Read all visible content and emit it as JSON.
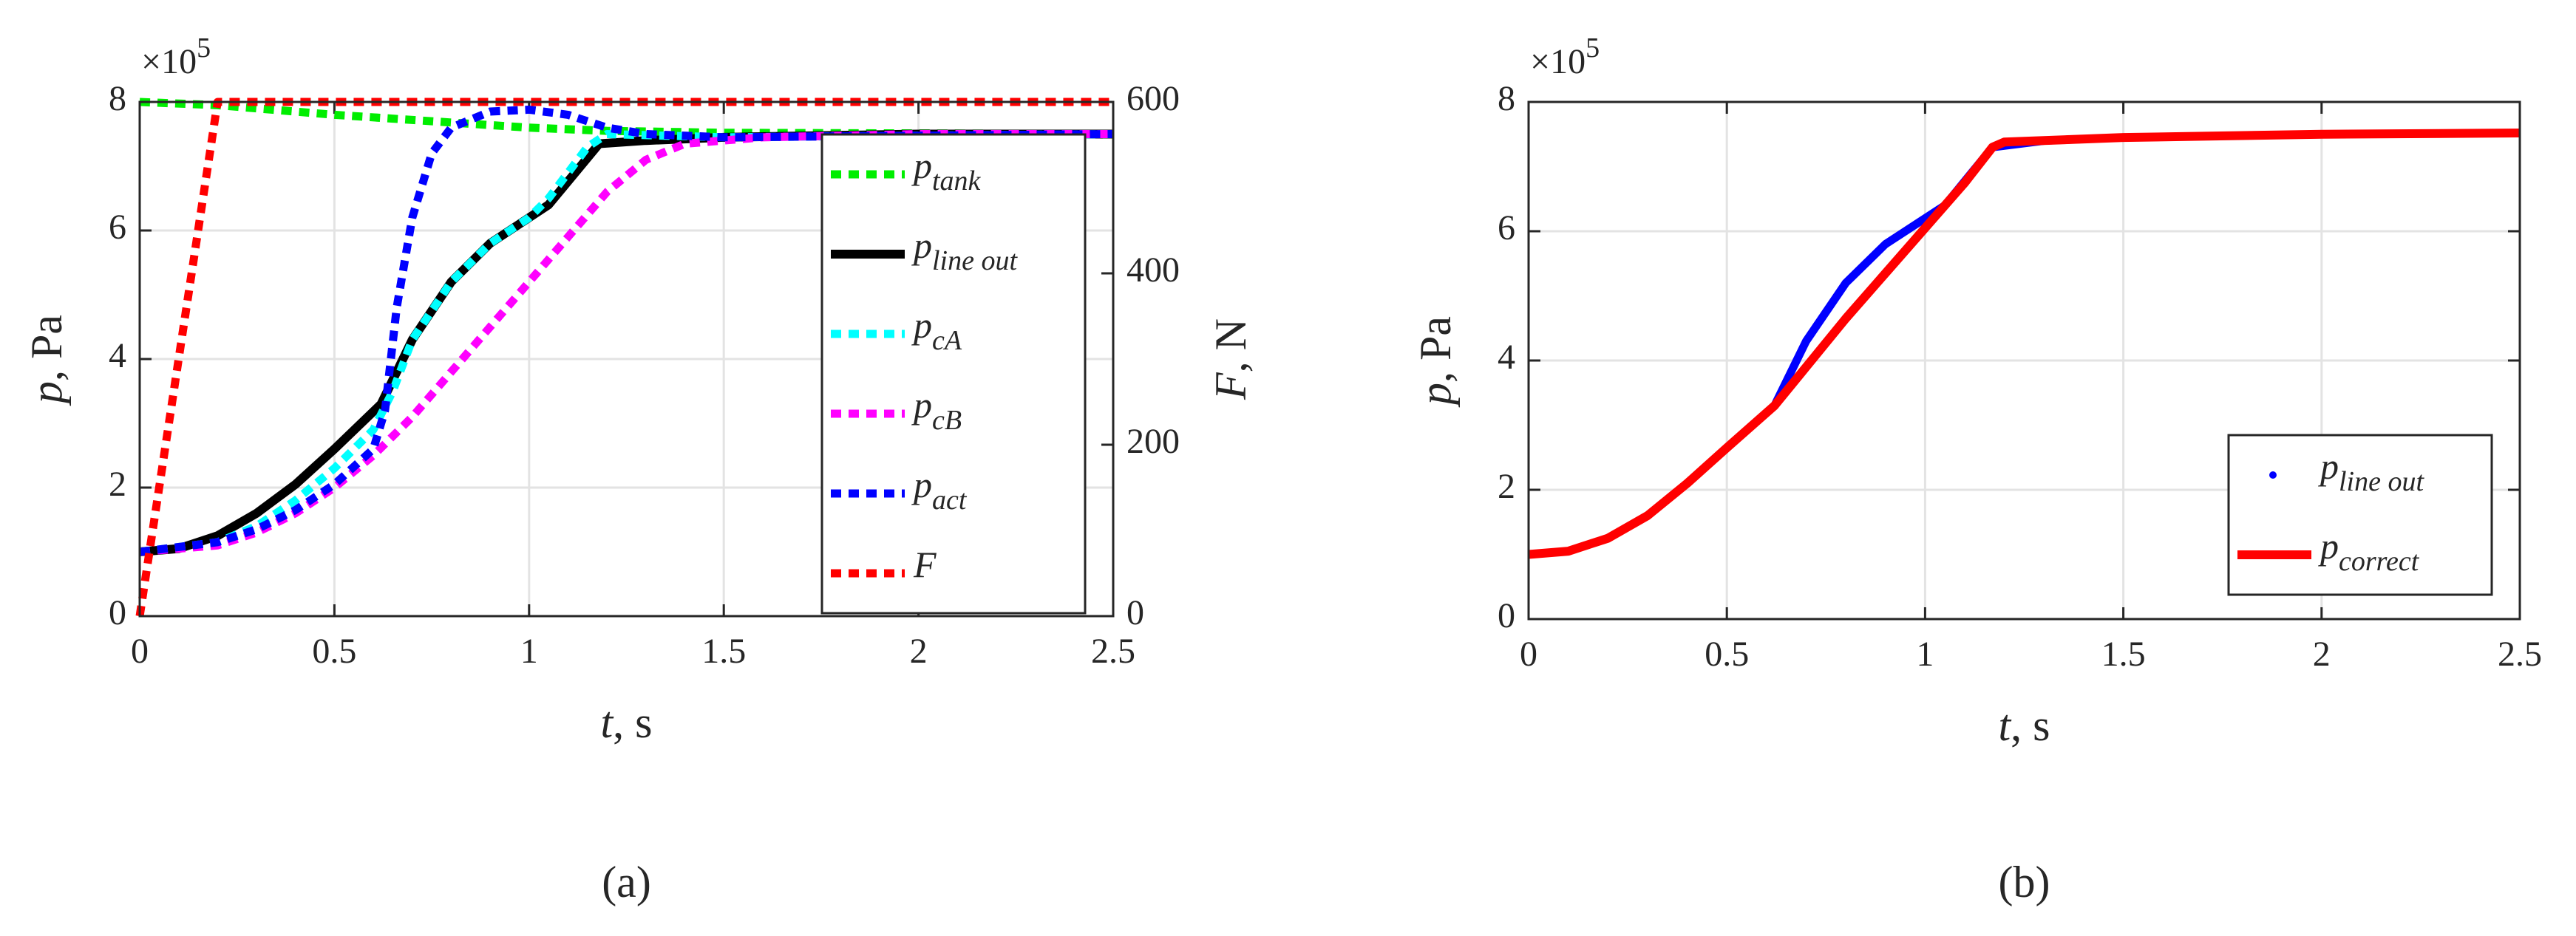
{
  "chart_data": [
    {
      "type": "line",
      "panel_label": "(a)",
      "multiplier": {
        "base": "×10",
        "exponent": "5"
      },
      "xlabel": {
        "symbol": "t",
        "rest": ", s"
      },
      "ylabel": {
        "symbol": "p",
        "rest": ", Pa"
      },
      "y2label": {
        "symbol": "F",
        "rest": ", N"
      },
      "xlim": [
        0,
        2.5
      ],
      "xticks": [
        0,
        0.5,
        1,
        1.5,
        2,
        2.5
      ],
      "ylim": [
        0,
        8
      ],
      "yticks": [
        0,
        2,
        4,
        6,
        8
      ],
      "y2lim": [
        0,
        600
      ],
      "y2ticks": [
        0,
        200,
        400,
        600
      ],
      "grid": true,
      "legend": "east",
      "series": [
        {
          "name": "p",
          "subscript": "tank",
          "color": "#00ee00",
          "style": "dotted",
          "x": [
            0,
            0.2,
            0.5,
            1.0,
            1.2,
            1.5,
            2.5
          ],
          "values": [
            8.0,
            7.95,
            7.8,
            7.6,
            7.55,
            7.52,
            7.5
          ]
        },
        {
          "name": "p",
          "subscript": "line out",
          "color": "#000000",
          "style": "solid",
          "x": [
            0,
            0.1,
            0.2,
            0.3,
            0.4,
            0.5,
            0.62,
            0.7,
            0.8,
            0.9,
            1.0,
            1.05,
            1.18,
            1.3,
            1.5,
            2.0,
            2.5
          ],
          "values": [
            1.0,
            1.05,
            1.25,
            1.6,
            2.05,
            2.6,
            3.3,
            4.3,
            5.2,
            5.8,
            6.2,
            6.4,
            7.35,
            7.4,
            7.45,
            7.5,
            7.5
          ]
        },
        {
          "name": "p",
          "subscript": "cA",
          "color": "#00ffff",
          "style": "dotted",
          "x": [
            0,
            0.2,
            0.3,
            0.4,
            0.5,
            0.6,
            0.65,
            0.7,
            0.8,
            0.9,
            1.0,
            1.05,
            1.15,
            1.2,
            1.5,
            2.5
          ],
          "values": [
            1.0,
            1.15,
            1.4,
            1.8,
            2.3,
            2.9,
            3.5,
            4.3,
            5.2,
            5.8,
            6.2,
            6.5,
            7.3,
            7.5,
            7.45,
            7.5
          ]
        },
        {
          "name": "p",
          "subscript": "cB",
          "color": "#ff00ff",
          "style": "dotted",
          "x": [
            0,
            0.2,
            0.3,
            0.4,
            0.5,
            0.6,
            0.7,
            0.8,
            0.9,
            1.0,
            1.1,
            1.2,
            1.3,
            1.4,
            1.6,
            2.0,
            2.5
          ],
          "values": [
            1.0,
            1.1,
            1.3,
            1.6,
            2.0,
            2.5,
            3.1,
            3.8,
            4.5,
            5.2,
            5.9,
            6.6,
            7.1,
            7.35,
            7.45,
            7.5,
            7.5
          ]
        },
        {
          "name": "p",
          "subscript": "act",
          "color": "#0000ff",
          "style": "dotted",
          "x": [
            0,
            0.2,
            0.3,
            0.4,
            0.5,
            0.6,
            0.63,
            0.66,
            0.7,
            0.75,
            0.8,
            0.9,
            1.0,
            1.1,
            1.2,
            1.3,
            1.5,
            2.5
          ],
          "values": [
            1.0,
            1.15,
            1.35,
            1.65,
            2.05,
            2.6,
            3.2,
            4.8,
            6.2,
            7.2,
            7.6,
            7.85,
            7.88,
            7.8,
            7.6,
            7.5,
            7.45,
            7.5
          ]
        },
        {
          "name": "F",
          "color": "#ff0000",
          "style": "dotted",
          "axis": "y2",
          "x": [
            0,
            0.2,
            2.5
          ],
          "values": [
            0,
            600,
            600
          ]
        }
      ]
    },
    {
      "type": "line",
      "panel_label": "(b)",
      "multiplier": {
        "base": "×10",
        "exponent": "5"
      },
      "xlabel": {
        "symbol": "t",
        "rest": ", s"
      },
      "ylabel": {
        "symbol": "p",
        "rest": ", Pa"
      },
      "xlim": [
        0,
        2.5
      ],
      "xticks": [
        0,
        0.5,
        1,
        1.5,
        2,
        2.5
      ],
      "ylim": [
        0,
        8
      ],
      "yticks": [
        0,
        2,
        4,
        6,
        8
      ],
      "grid": true,
      "legend": "southeast",
      "series": [
        {
          "name": "p",
          "subscript": "line out",
          "color": "#0000ff",
          "style": "dot",
          "x": [
            0,
            0.1,
            0.2,
            0.3,
            0.4,
            0.5,
            0.62,
            0.7,
            0.8,
            0.9,
            1.0,
            1.05,
            1.17,
            1.3,
            1.5,
            2.0,
            2.5
          ],
          "values": [
            1.0,
            1.05,
            1.25,
            1.6,
            2.1,
            2.65,
            3.3,
            4.3,
            5.2,
            5.8,
            6.2,
            6.4,
            7.3,
            7.4,
            7.45,
            7.5,
            7.52
          ]
        },
        {
          "name": "p",
          "subscript": "correct",
          "color": "#ff0000",
          "style": "solid",
          "x": [
            0,
            0.1,
            0.2,
            0.3,
            0.4,
            0.5,
            0.62,
            0.7,
            0.8,
            0.9,
            1.0,
            1.1,
            1.17,
            1.2,
            1.5,
            2.0,
            2.5
          ],
          "values": [
            1.0,
            1.05,
            1.25,
            1.6,
            2.1,
            2.65,
            3.3,
            3.9,
            4.65,
            5.35,
            6.05,
            6.75,
            7.3,
            7.38,
            7.45,
            7.5,
            7.52
          ]
        }
      ]
    }
  ]
}
